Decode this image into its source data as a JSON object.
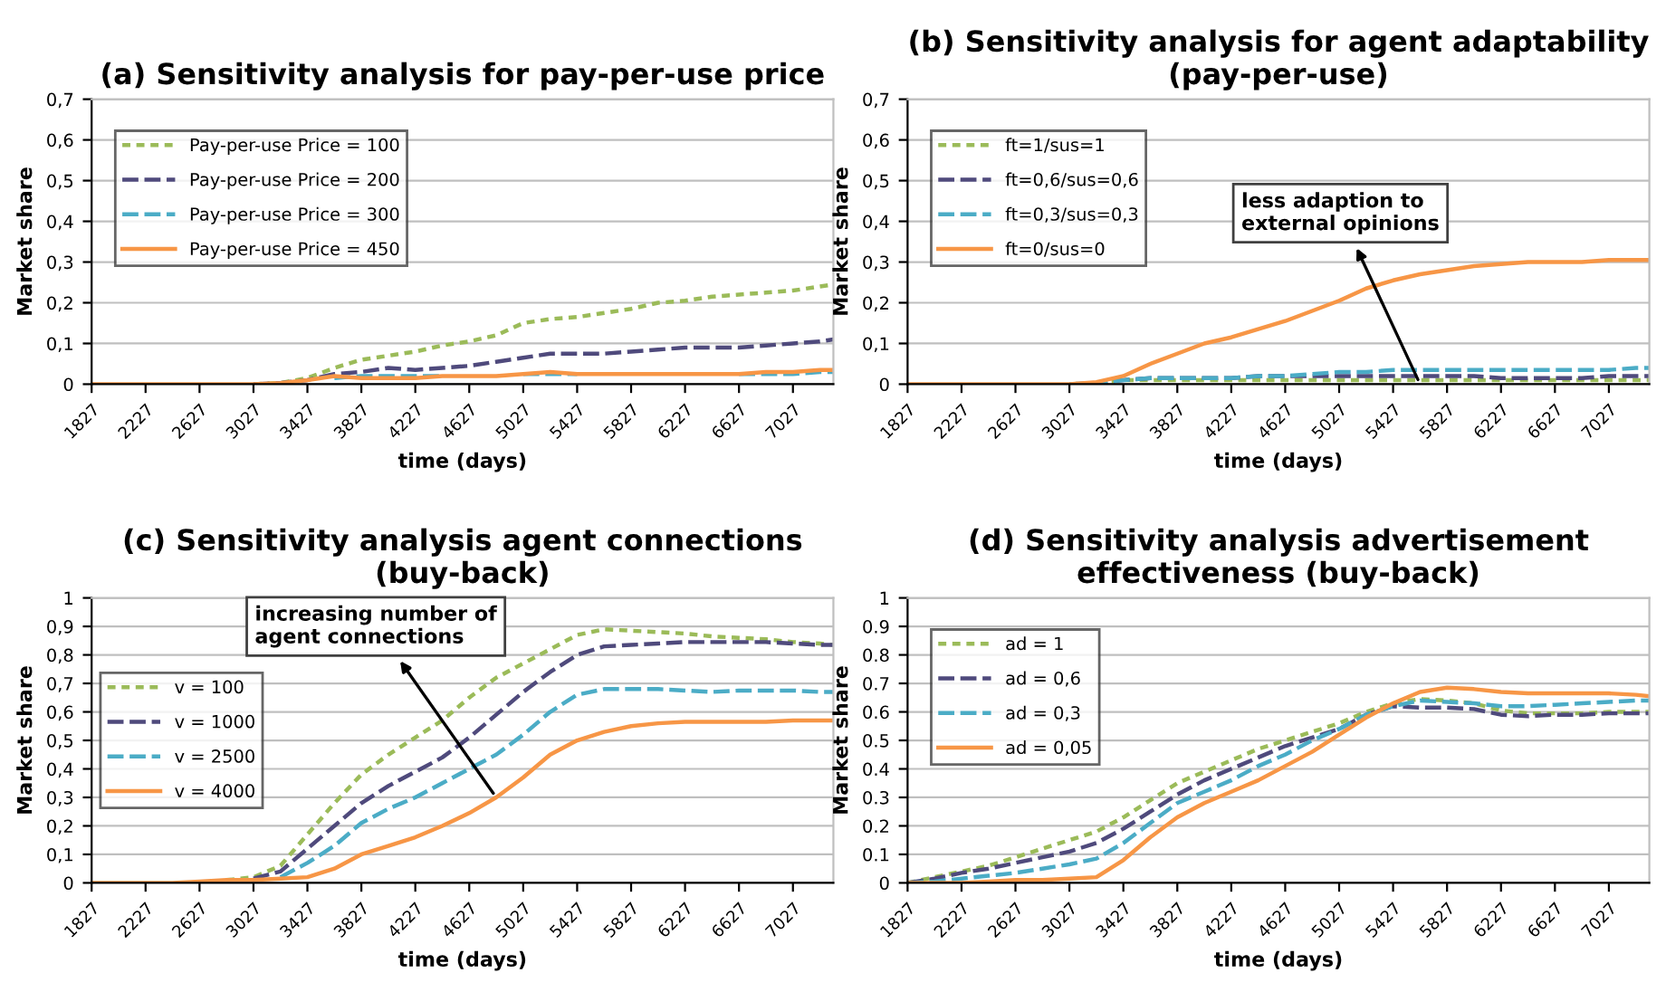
{
  "chart_data": [
    {
      "type": "line",
      "title": "(a) Sensitivity analysis for pay-per-use price",
      "xlabel": "time (days)",
      "ylabel": "Market share",
      "x": [
        1827,
        2027,
        2227,
        2427,
        2627,
        2827,
        3027,
        3227,
        3427,
        3627,
        3827,
        4027,
        4227,
        4427,
        4627,
        4827,
        5027,
        5227,
        5427,
        5627,
        5827,
        6027,
        6227,
        6427,
        6627,
        6827,
        7027,
        7227,
        7327
      ],
      "xlim": [
        1827,
        7327
      ],
      "xticks": [
        1827,
        2227,
        2627,
        3027,
        3427,
        3827,
        4227,
        4627,
        5027,
        5427,
        5827,
        6227,
        6627,
        7027
      ],
      "ylim": [
        0,
        0.7
      ],
      "yticks": [
        {
          "value": 0,
          "label": "0"
        },
        {
          "value": 0.1,
          "label": "0,1"
        },
        {
          "value": 0.2,
          "label": "0,2"
        },
        {
          "value": 0.3,
          "label": "0,3"
        },
        {
          "value": 0.4,
          "label": "0,4"
        },
        {
          "value": 0.5,
          "label": "0,5"
        },
        {
          "value": 0.6,
          "label": "0,6"
        },
        {
          "value": 0.7,
          "label": "0,7"
        }
      ],
      "grid": "y",
      "legend": "top left",
      "series": [
        {
          "name": "Pay-per-use Price = 100",
          "color": "#9bbb59",
          "line_style": "dotted",
          "values": [
            null,
            null,
            null,
            null,
            null,
            null,
            0,
            0.003,
            0.015,
            0.04,
            0.06,
            0.07,
            0.08,
            0.095,
            0.105,
            0.12,
            0.15,
            0.16,
            0.165,
            0.175,
            0.185,
            0.2,
            0.205,
            0.215,
            0.22,
            0.225,
            0.23,
            0.24,
            0.245
          ]
        },
        {
          "name": "Pay-per-use Price = 200",
          "color": "#4f4a7c",
          "line_style": "dashed",
          "values": [
            null,
            null,
            null,
            null,
            null,
            null,
            0,
            0.003,
            0.01,
            0.025,
            0.03,
            0.04,
            0.035,
            0.04,
            0.045,
            0.055,
            0.065,
            0.075,
            0.075,
            0.075,
            0.08,
            0.085,
            0.09,
            0.09,
            0.09,
            0.095,
            0.1,
            0.105,
            0.11
          ]
        },
        {
          "name": "Pay-per-use Price = 300",
          "color": "#4bacc6",
          "line_style": "dashed",
          "values": [
            null,
            null,
            null,
            null,
            null,
            null,
            null,
            null,
            null,
            0.015,
            0.02,
            0.02,
            0.02,
            0.02,
            null,
            null,
            0.025,
            0.025,
            0.025,
            null,
            null,
            null,
            null,
            null,
            0.025,
            0.025,
            0.025,
            0.03,
            0.03
          ]
        },
        {
          "name": "Pay-per-use Price = 450",
          "color": "#f79646",
          "line_style": "solid",
          "values": [
            0,
            0,
            0,
            0,
            0,
            0,
            0,
            0.003,
            0.01,
            0.02,
            0.015,
            0.015,
            0.015,
            0.02,
            0.02,
            0.02,
            0.025,
            0.03,
            0.025,
            0.025,
            0.025,
            0.025,
            0.025,
            0.025,
            0.025,
            0.03,
            0.03,
            0.035,
            0.035
          ]
        }
      ]
    },
    {
      "type": "line",
      "title": "(b) Sensitivity analysis for agent adaptability\n(pay-per-use)",
      "xlabel": "time (days)",
      "ylabel": "Market share",
      "annotations": [
        {
          "text": "less adaption to\nexternal opinions",
          "x": 5627,
          "y": 0
        }
      ],
      "x": [
        1827,
        2027,
        2227,
        2427,
        2627,
        2827,
        3027,
        3227,
        3427,
        3627,
        3827,
        4027,
        4227,
        4427,
        4627,
        4827,
        5027,
        5227,
        5427,
        5627,
        5827,
        6027,
        6227,
        6427,
        6627,
        6827,
        7027,
        7227,
        7327
      ],
      "xlim": [
        1827,
        7327
      ],
      "xticks": [
        1827,
        2227,
        2627,
        3027,
        3427,
        3827,
        4227,
        4627,
        5027,
        5427,
        5827,
        6227,
        6627,
        7027
      ],
      "ylim": [
        0,
        0.7
      ],
      "yticks": [
        {
          "value": 0,
          "label": "0"
        },
        {
          "value": 0.1,
          "label": "0,1"
        },
        {
          "value": 0.2,
          "label": "0,2"
        },
        {
          "value": 0.3,
          "label": "0,3"
        },
        {
          "value": 0.4,
          "label": "0,4"
        },
        {
          "value": 0.5,
          "label": "0,5"
        },
        {
          "value": 0.6,
          "label": "0,6"
        },
        {
          "value": 0.7,
          "label": "0,7"
        }
      ],
      "grid": "y",
      "legend": "top left",
      "series": [
        {
          "name": "ft=1/sus=1",
          "color": "#9bbb59",
          "line_style": "dotted",
          "values": [
            null,
            null,
            null,
            null,
            null,
            null,
            0,
            0.003,
            0.01,
            0.01,
            0.01,
            0.01,
            0.01,
            0.01,
            0.01,
            0.01,
            0.01,
            0.01,
            0.01,
            0.01,
            0.01,
            0.01,
            0.01,
            0.01,
            0.01,
            0.01,
            0.01,
            0.01,
            0.01
          ]
        },
        {
          "name": "ft=0,6/sus=0,6",
          "color": "#4f4a7c",
          "line_style": "dashed",
          "values": [
            null,
            null,
            null,
            null,
            null,
            null,
            0,
            0.003,
            0.01,
            0.015,
            0.015,
            0.015,
            0.015,
            0.02,
            0.02,
            0.02,
            0.02,
            0.02,
            0.02,
            0.02,
            0.02,
            0.02,
            0.015,
            0.015,
            0.015,
            0.015,
            0.02,
            0.02,
            0.02
          ]
        },
        {
          "name": "ft=0,3/sus=0,3",
          "color": "#4bacc6",
          "line_style": "dashed",
          "values": [
            null,
            null,
            null,
            null,
            null,
            null,
            0,
            0.003,
            0.01,
            0.015,
            0.015,
            0.015,
            0.015,
            0.02,
            0.02,
            0.025,
            0.03,
            0.03,
            0.035,
            0.035,
            0.035,
            0.035,
            0.035,
            0.035,
            0.035,
            0.035,
            0.035,
            0.04,
            0.04
          ]
        },
        {
          "name": "ft=0/sus=0",
          "color": "#f79646",
          "line_style": "solid",
          "values": [
            0,
            0,
            0,
            0,
            0,
            0,
            0,
            0.005,
            0.02,
            0.05,
            0.075,
            0.1,
            0.115,
            0.135,
            0.155,
            0.18,
            0.205,
            0.235,
            0.255,
            0.27,
            0.28,
            0.29,
            0.295,
            0.3,
            0.3,
            0.3,
            0.305,
            0.305,
            0.305
          ]
        }
      ]
    },
    {
      "type": "line",
      "title": "(c) Sensitivity analysis agent connections\n(buy-back)",
      "xlabel": "time (days)",
      "ylabel": "Market share",
      "annotations": [
        {
          "text": "increasing number of\nagent connections",
          "x": 4827,
          "y": 0.3
        }
      ],
      "x": [
        1827,
        2027,
        2227,
        2427,
        2627,
        2827,
        3027,
        3227,
        3427,
        3627,
        3827,
        4027,
        4227,
        4427,
        4627,
        4827,
        5027,
        5227,
        5427,
        5627,
        5827,
        6027,
        6227,
        6427,
        6627,
        6827,
        7027,
        7227,
        7327
      ],
      "xlim": [
        1827,
        7327
      ],
      "xticks": [
        1827,
        2227,
        2627,
        3027,
        3427,
        3827,
        4227,
        4627,
        5027,
        5427,
        5827,
        6227,
        6627,
        7027
      ],
      "ylim": [
        0,
        1
      ],
      "yticks": [
        {
          "value": 0,
          "label": "0"
        },
        {
          "value": 0.1,
          "label": "0,1"
        },
        {
          "value": 0.2,
          "label": "0,2"
        },
        {
          "value": 0.3,
          "label": "0,3"
        },
        {
          "value": 0.4,
          "label": "0,4"
        },
        {
          "value": 0.5,
          "label": "0,5"
        },
        {
          "value": 0.6,
          "label": "0,6"
        },
        {
          "value": 0.7,
          "label": "0,7"
        },
        {
          "value": 0.8,
          "label": "0,8"
        },
        {
          "value": 0.9,
          "label": "0,9"
        },
        {
          "value": 1,
          "label": "1"
        }
      ],
      "grid": "y",
      "legend": "left",
      "series": [
        {
          "name": "v = 100",
          "color": "#9bbb59",
          "line_style": "dotted",
          "values": [
            null,
            null,
            null,
            null,
            null,
            0.01,
            0.02,
            0.06,
            0.17,
            0.28,
            0.38,
            0.45,
            0.51,
            0.57,
            0.65,
            0.72,
            0.77,
            0.82,
            0.87,
            0.89,
            0.885,
            0.88,
            0.875,
            0.865,
            0.86,
            0.855,
            0.845,
            0.84,
            0.835
          ]
        },
        {
          "name": "v = 1000",
          "color": "#4f4a7c",
          "line_style": "dashed",
          "values": [
            null,
            null,
            null,
            null,
            null,
            null,
            0.015,
            0.04,
            0.12,
            0.2,
            0.28,
            0.34,
            0.39,
            0.44,
            0.51,
            0.59,
            0.67,
            0.74,
            0.8,
            0.83,
            0.835,
            0.84,
            0.845,
            0.845,
            0.845,
            0.845,
            0.84,
            0.835,
            0.835
          ]
        },
        {
          "name": "v = 2500",
          "color": "#4bacc6",
          "line_style": "dashed",
          "values": [
            null,
            null,
            null,
            null,
            null,
            null,
            null,
            0.02,
            0.07,
            0.13,
            0.21,
            0.26,
            0.3,
            0.35,
            0.4,
            0.45,
            0.52,
            0.6,
            0.66,
            0.68,
            0.68,
            0.68,
            0.675,
            0.67,
            0.675,
            0.675,
            0.675,
            0.67,
            0.67
          ]
        },
        {
          "name": "v = 4000",
          "color": "#f79646",
          "line_style": "solid",
          "values": [
            0,
            0,
            0,
            0,
            0.005,
            0.01,
            0.01,
            0.015,
            0.02,
            0.05,
            0.1,
            0.13,
            0.16,
            0.2,
            0.245,
            0.3,
            0.37,
            0.45,
            0.5,
            0.53,
            0.55,
            0.56,
            0.565,
            0.565,
            0.565,
            0.565,
            0.57,
            0.57,
            0.57
          ]
        }
      ]
    },
    {
      "type": "line",
      "title": "(d) Sensitivity analysis advertisement\neffectiveness (buy-back)",
      "xlabel": "time (days)",
      "ylabel": "Market share",
      "x": [
        1827,
        2027,
        2227,
        2427,
        2627,
        2827,
        3027,
        3227,
        3427,
        3627,
        3827,
        4027,
        4227,
        4427,
        4627,
        4827,
        5027,
        5227,
        5427,
        5627,
        5827,
        6027,
        6227,
        6427,
        6627,
        6827,
        7027,
        7227,
        7327
      ],
      "xlim": [
        1827,
        7327
      ],
      "xticks": [
        1827,
        2227,
        2627,
        3027,
        3427,
        3827,
        4227,
        4627,
        5027,
        5427,
        5827,
        6227,
        6627,
        7027
      ],
      "ylim": [
        0,
        1
      ],
      "yticks": [
        0,
        {
          "value": 0.1,
          "label": "0.1"
        },
        {
          "value": 0.2,
          "label": "0.2"
        },
        {
          "value": 0.3,
          "label": "0.3"
        },
        {
          "value": 0.4,
          "label": "0.4"
        },
        {
          "value": 0.5,
          "label": "0.5"
        },
        {
          "value": 0.6,
          "label": "0.6"
        },
        {
          "value": 0.7,
          "label": "0.7"
        },
        {
          "value": 0.8,
          "label": "0.8"
        },
        {
          "value": 0.9,
          "label": "0.9"
        },
        1
      ],
      "grid": "y",
      "legend": "top left",
      "series": [
        {
          "name": "ad = 1",
          "color": "#9bbb59",
          "line_style": "dotted",
          "values": [
            0,
            0.02,
            0.04,
            0.06,
            0.09,
            0.12,
            0.15,
            0.18,
            0.23,
            0.29,
            0.35,
            0.39,
            0.43,
            0.47,
            0.5,
            0.53,
            0.56,
            0.6,
            0.63,
            0.645,
            0.64,
            0.63,
            0.605,
            0.595,
            0.595,
            0.595,
            0.6,
            0.6,
            0.6
          ]
        },
        {
          "name": "ad = 0,6",
          "color": "#4f4a7c",
          "line_style": "dashed",
          "values": [
            0,
            0.015,
            0.035,
            0.05,
            0.07,
            0.09,
            0.11,
            0.14,
            0.19,
            0.25,
            0.31,
            0.36,
            0.4,
            0.44,
            0.48,
            0.51,
            0.54,
            0.59,
            0.62,
            0.615,
            0.615,
            0.61,
            0.59,
            0.585,
            0.59,
            0.59,
            0.595,
            0.595,
            0.595
          ]
        },
        {
          "name": "ad = 0,3",
          "color": "#4bacc6",
          "line_style": "dashed",
          "values": [
            0,
            0.005,
            0.015,
            0.025,
            0.035,
            0.05,
            0.065,
            0.085,
            0.14,
            0.21,
            0.28,
            0.32,
            0.36,
            0.41,
            0.45,
            0.5,
            0.54,
            0.59,
            0.62,
            0.64,
            0.635,
            0.63,
            0.62,
            0.62,
            0.625,
            0.63,
            0.635,
            0.64,
            0.64
          ]
        },
        {
          "name": "ad = 0,05",
          "color": "#f79646",
          "line_style": "solid",
          "values": [
            0,
            0,
            0,
            0.005,
            0.01,
            0.01,
            0.015,
            0.02,
            0.08,
            0.16,
            0.23,
            0.28,
            0.32,
            0.36,
            0.41,
            0.46,
            0.52,
            0.58,
            0.63,
            0.67,
            0.685,
            0.68,
            0.67,
            0.665,
            0.665,
            0.665,
            0.665,
            0.66,
            0.655
          ]
        }
      ]
    }
  ]
}
